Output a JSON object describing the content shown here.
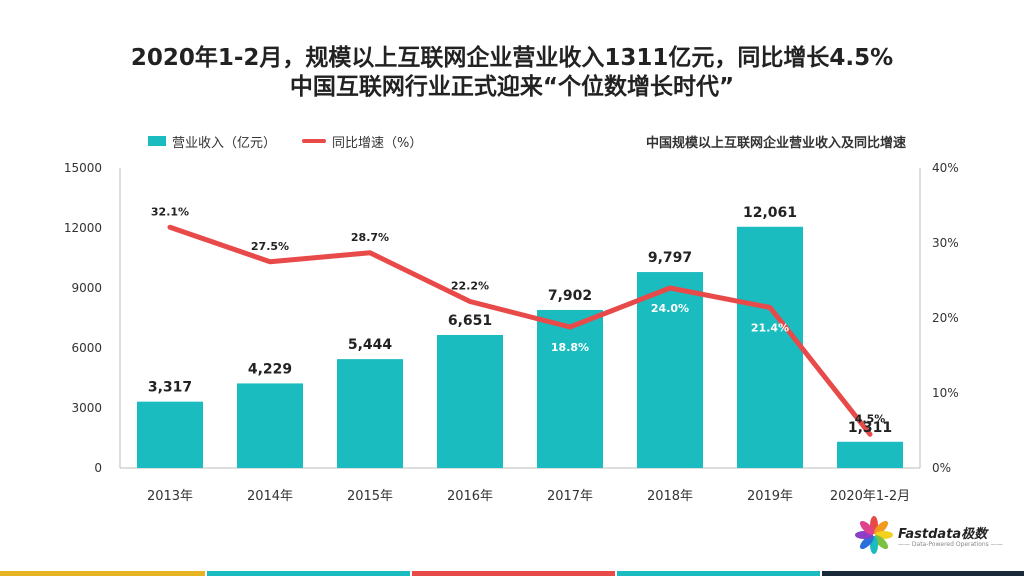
{
  "title_line1": "2020年1-2月，规模以上互联网企业营业收入1311亿元，同比增长4.5%",
  "title_line2": "中国互联网行业正式迎来“个位数增长时代”",
  "chart_subtitle": "中国规模以上互联网企业营业收入及同比增速",
  "logo": {
    "brand": "Fastdata极数",
    "tagline": "—— Data-Powered Operations ——"
  },
  "colors": {
    "bar": "#1bbcbf",
    "line": "#e84a4a",
    "text": "#333333",
    "stripes": [
      "#e6b422",
      "#1bbcbf",
      "#e84a4a",
      "#1bbcbf",
      "#1a2a3a"
    ]
  },
  "chart_data": {
    "type": "bar",
    "categories": [
      "2013年",
      "2014年",
      "2015年",
      "2016年",
      "2017年",
      "2018年",
      "2019年",
      "2020年1-2月"
    ],
    "series": [
      {
        "name": "营业收入（亿元）",
        "type": "bar",
        "axis": "left",
        "values": [
          3317,
          4229,
          5444,
          6651,
          7902,
          9797,
          12061,
          1311
        ],
        "labels": [
          "3,317",
          "4,229",
          "5,444",
          "6,651",
          "7,902",
          "9,797",
          "12,061",
          "1,311"
        ]
      },
      {
        "name": "同比增速（%）",
        "type": "line",
        "axis": "right",
        "values": [
          32.1,
          27.5,
          28.7,
          22.2,
          18.8,
          24.0,
          21.4,
          4.5
        ],
        "labels": [
          "32.1%",
          "27.5%",
          "28.7%",
          "22.2%",
          "18.8%",
          "24.0%",
          "21.4%",
          "4.5%"
        ]
      }
    ],
    "y_left": {
      "ylim": [
        0,
        15000
      ],
      "ticks": [
        "0",
        "3000",
        "6000",
        "9000",
        "12000",
        "15000"
      ]
    },
    "y_right": {
      "ylim": [
        0,
        40
      ],
      "ticks": [
        "0%",
        "10%",
        "20%",
        "30%",
        "40%"
      ]
    },
    "legend_position": "top-left"
  }
}
